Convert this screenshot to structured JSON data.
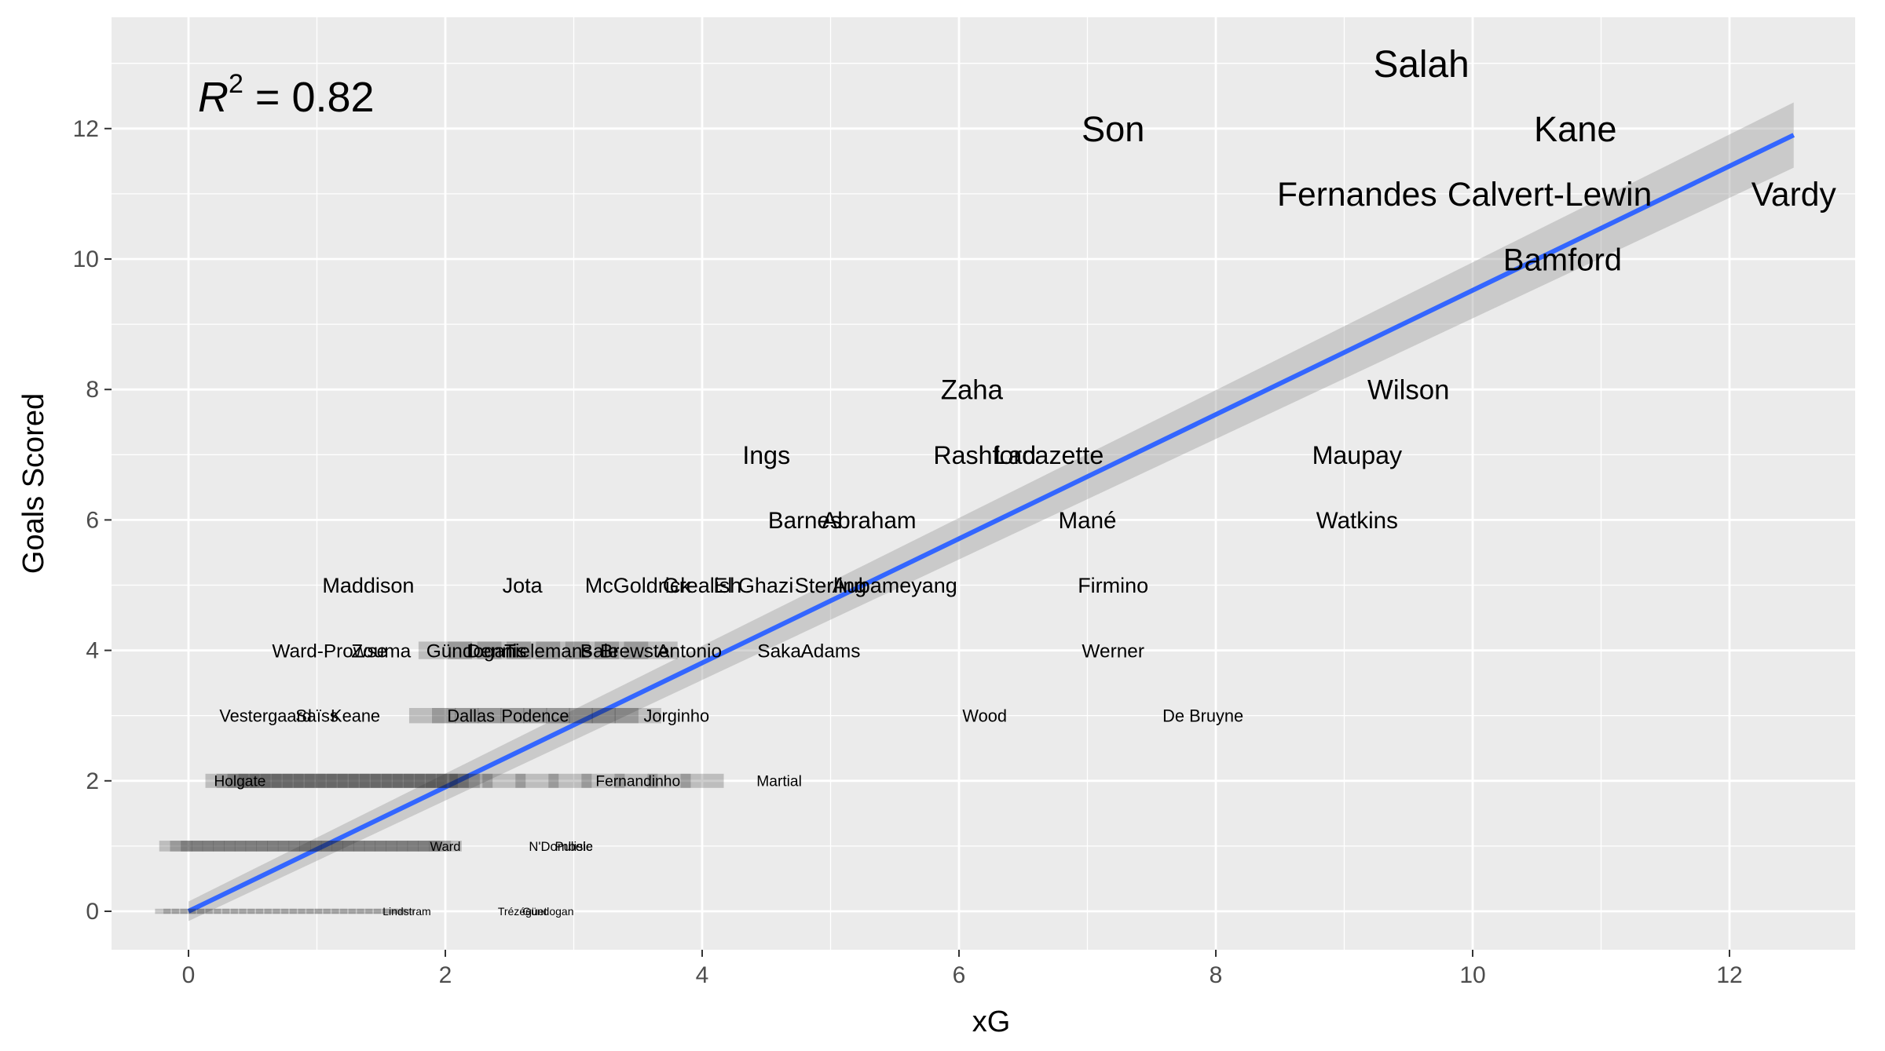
{
  "chart_data": {
    "type": "scatter",
    "title": "",
    "xlabel": "xG",
    "ylabel": "Goals Scored",
    "xlim": [
      -0.6,
      13.0
    ],
    "ylim": [
      -0.6,
      13.6
    ],
    "xticks": [
      0,
      2,
      4,
      6,
      8,
      10,
      12
    ],
    "yticks": [
      0,
      2,
      4,
      6,
      8,
      10,
      12
    ],
    "grid": true,
    "annotation": {
      "label": "R",
      "superscript": "2",
      "text": " = 0.82"
    },
    "trend_line": {
      "x": [
        0,
        12.5
      ],
      "y": [
        0,
        11.9
      ],
      "ci_start_halfwidth": 0.15,
      "ci_end_halfwidth": 0.5
    },
    "points": [
      {
        "name": "Salah",
        "x": 9.6,
        "y": 13
      },
      {
        "name": "Kane",
        "x": 10.8,
        "y": 12
      },
      {
        "name": "Son",
        "x": 7.2,
        "y": 12
      },
      {
        "name": "Fernandes",
        "x": 9.1,
        "y": 11
      },
      {
        "name": "Calvert-Lewin",
        "x": 10.6,
        "y": 11
      },
      {
        "name": "Vardy",
        "x": 12.5,
        "y": 11
      },
      {
        "name": "Bamford",
        "x": 10.7,
        "y": 10
      },
      {
        "name": "Zaha",
        "x": 6.1,
        "y": 8
      },
      {
        "name": "Wilson",
        "x": 9.5,
        "y": 8
      },
      {
        "name": "Ings",
        "x": 4.5,
        "y": 7
      },
      {
        "name": "Rashford",
        "x": 6.2,
        "y": 7
      },
      {
        "name": "Lacazette",
        "x": 6.7,
        "y": 7
      },
      {
        "name": "Maupay",
        "x": 9.1,
        "y": 7
      },
      {
        "name": "Barnes",
        "x": 4.8,
        "y": 6
      },
      {
        "name": "Abraham",
        "x": 5.3,
        "y": 6
      },
      {
        "name": "Mané",
        "x": 7.0,
        "y": 6
      },
      {
        "name": "Watkins",
        "x": 9.1,
        "y": 6
      },
      {
        "name": "Maddison",
        "x": 1.4,
        "y": 5
      },
      {
        "name": "Jota",
        "x": 2.6,
        "y": 5
      },
      {
        "name": "McGoldrick",
        "x": 3.5,
        "y": 5
      },
      {
        "name": "Grealish",
        "x": 4.0,
        "y": 5
      },
      {
        "name": "El Ghazi",
        "x": 4.4,
        "y": 5
      },
      {
        "name": "Sterling",
        "x": 5.0,
        "y": 5
      },
      {
        "name": "Aubameyang",
        "x": 5.5,
        "y": 5
      },
      {
        "name": "Firmino",
        "x": 7.2,
        "y": 5
      },
      {
        "name": "Ward-Prowse",
        "x": 1.1,
        "y": 4
      },
      {
        "name": "Zouma",
        "x": 1.5,
        "y": 4
      },
      {
        "name": "Gündogan",
        "x": 2.2,
        "y": 4
      },
      {
        "name": "Dennis",
        "x": 2.4,
        "y": 4
      },
      {
        "name": "Tielemans",
        "x": 2.8,
        "y": 4
      },
      {
        "name": "Bale",
        "x": 3.2,
        "y": 4
      },
      {
        "name": "Brewster",
        "x": 3.5,
        "y": 4
      },
      {
        "name": "Antonio",
        "x": 3.9,
        "y": 4
      },
      {
        "name": "Saka",
        "x": 4.6,
        "y": 4
      },
      {
        "name": "Adams",
        "x": 5.0,
        "y": 4
      },
      {
        "name": "Werner",
        "x": 7.2,
        "y": 4
      },
      {
        "name": "Vestergaard",
        "x": 0.6,
        "y": 3
      },
      {
        "name": "Saïss",
        "x": 1.0,
        "y": 3
      },
      {
        "name": "Keane",
        "x": 1.3,
        "y": 3
      },
      {
        "name": "Dallas",
        "x": 2.2,
        "y": 3
      },
      {
        "name": "Podence",
        "x": 2.7,
        "y": 3
      },
      {
        "name": "Jorginho",
        "x": 3.8,
        "y": 3
      },
      {
        "name": "Wood",
        "x": 6.2,
        "y": 3
      },
      {
        "name": "De Bruyne",
        "x": 7.9,
        "y": 3
      },
      {
        "name": "Holgate",
        "x": 0.4,
        "y": 2
      },
      {
        "name": "Fernandinho",
        "x": 3.5,
        "y": 2
      },
      {
        "name": "Martial",
        "x": 4.6,
        "y": 2
      },
      {
        "name": "Ward",
        "x": 2.0,
        "y": 1
      },
      {
        "name": "N'Dombele",
        "x": 2.9,
        "y": 1
      },
      {
        "name": "Pulisic",
        "x": 3.0,
        "y": 1
      },
      {
        "name": "Lindstram",
        "x": 1.7,
        "y": 0
      },
      {
        "name": "Trézéguet",
        "x": 2.6,
        "y": 0
      },
      {
        "name": "Gündogan",
        "x": 2.8,
        "y": 0
      }
    ],
    "clusters": [
      {
        "y": 4,
        "x_from": 2.0,
        "x_to": 3.6,
        "count": 8,
        "size": 31
      },
      {
        "y": 3,
        "x_from": 1.9,
        "x_to": 3.5,
        "count": 10,
        "size": 27
      },
      {
        "y": 2,
        "x_from": 0.3,
        "x_to": 2.1,
        "count": 22,
        "size": 25
      },
      {
        "y": 2,
        "x_from": 2.2,
        "x_to": 4.0,
        "count": 8,
        "size": 25
      },
      {
        "y": 1,
        "x_from": -0.1,
        "x_to": 2.0,
        "count": 26,
        "size": 19
      },
      {
        "y": 0,
        "x_from": -0.2,
        "x_to": 1.7,
        "count": 30,
        "size": 9
      }
    ]
  }
}
